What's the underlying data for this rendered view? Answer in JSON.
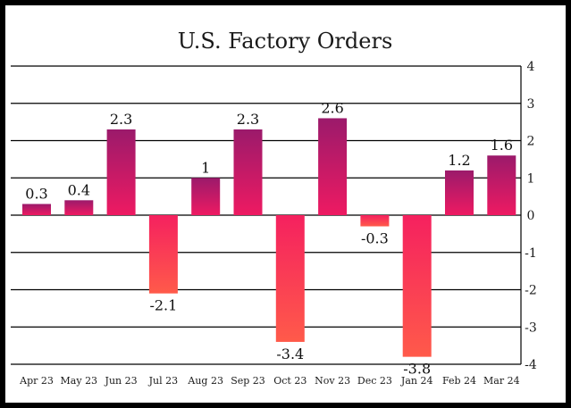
{
  "chart_data": {
    "type": "bar",
    "title": "U.S. Factory Orders",
    "categories": [
      "Apr 23",
      "May 23",
      "Jun 23",
      "Jul 23",
      "Aug 23",
      "Sep 23",
      "Oct 23",
      "Nov 23",
      "Dec 23",
      "Jan 24",
      "Feb 24",
      "Mar 24"
    ],
    "values": [
      0.3,
      0.4,
      2.3,
      -2.1,
      1,
      2.3,
      -3.4,
      2.6,
      -0.3,
      -3.8,
      1.2,
      1.6
    ],
    "data_labels": [
      "0.3",
      "0.4",
      "2.3",
      "-2.1",
      "1",
      "2.3",
      "-3.4",
      "2.6",
      "-0.3",
      "-3.8",
      "1.2",
      "1.6"
    ],
    "ylim": [
      -4,
      4
    ],
    "yticks": [
      4,
      3,
      2,
      1,
      0,
      -1,
      -2,
      -3,
      -4
    ],
    "ytick_labels": [
      "4",
      "3",
      "2",
      "1",
      "0",
      "-1",
      "-2",
      "-3",
      "-4"
    ],
    "y_axis_side": "right",
    "grid": true,
    "xlabel": "",
    "ylabel": "",
    "colors": {
      "positive_top": "#9b1a6b",
      "positive_bottom": "#ee1a62",
      "negative_top": "#f5215f",
      "negative_bottom": "#ff5a4a",
      "grid": "#000000",
      "frame_bg": "#ffffff",
      "page_bg": "#000000"
    }
  }
}
